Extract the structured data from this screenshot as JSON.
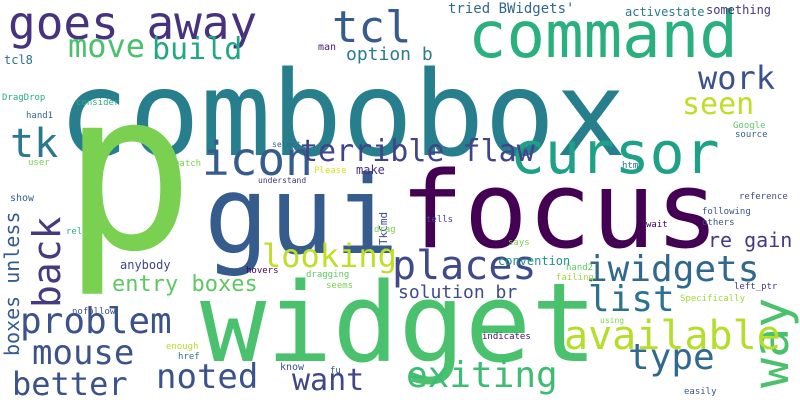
{
  "palette": {
    "dark_purple": "#440154",
    "indigo": "#46327e",
    "blue": "#365c8d",
    "teal_blue": "#277f8e",
    "teal": "#1fa187",
    "green": "#4ac16d",
    "light_green": "#a0da39",
    "yellow": "#d8e219"
  },
  "words": [
    {
      "text": "combobox",
      "color": "#277f8e"
    },
    {
      "text": "p",
      "color": "#7ad151"
    },
    {
      "text": "gui",
      "color": "#365c8d"
    },
    {
      "text": "focus",
      "color": "#440154"
    },
    {
      "text": "widget",
      "color": "#4ac16d"
    },
    {
      "text": "command",
      "color": "#2ab07f"
    },
    {
      "text": "cursor",
      "color": "#1fa187"
    },
    {
      "text": "goes away",
      "color": "#46327e"
    },
    {
      "text": "tcl",
      "color": "#365c8d"
    },
    {
      "text": "icon",
      "color": "#365c8d"
    },
    {
      "text": "way",
      "color": "#4ac16d"
    },
    {
      "text": "move",
      "color": "#4ac16d"
    },
    {
      "text": "build",
      "color": "#22a884"
    },
    {
      "text": "tk",
      "color": "#2a788e"
    },
    {
      "text": "back",
      "color": "#443983"
    },
    {
      "text": "problem",
      "color": "#3b528b"
    },
    {
      "text": "places",
      "color": "#3e4a89"
    },
    {
      "text": "iwidgets",
      "color": "#31688e"
    },
    {
      "text": "looking",
      "color": "#bddf26"
    },
    {
      "text": "terrible flaw",
      "color": "#414487"
    },
    {
      "text": "available",
      "color": "#b5de2b"
    },
    {
      "text": "list",
      "color": "#2c728e"
    },
    {
      "text": "seen",
      "color": "#bddf26"
    },
    {
      "text": "work",
      "color": "#3b528b"
    },
    {
      "text": "mouse",
      "color": "#3b528b"
    },
    {
      "text": "noted",
      "color": "#3b528b"
    },
    {
      "text": "exiting",
      "color": "#3dbc74"
    },
    {
      "text": "type",
      "color": "#31688e"
    },
    {
      "text": "better",
      "color": "#3b528b"
    },
    {
      "text": "want",
      "color": "#404688"
    },
    {
      "text": "entry boxes",
      "color": "#5ec962"
    },
    {
      "text": "boxes unless",
      "color": "#365c8d"
    },
    {
      "text": "re gain",
      "color": "#443983"
    },
    {
      "text": "solution br",
      "color": "#3e4a89"
    },
    {
      "text": "option b",
      "color": "#287c8e"
    },
    {
      "text": "tried BWidgets'",
      "color": "#31688e"
    },
    {
      "text": "activestate",
      "color": "#2a788e"
    },
    {
      "text": "something",
      "color": "#443983"
    },
    {
      "text": "tcl8",
      "color": "#2d708e"
    },
    {
      "text": "man",
      "color": "#482173"
    },
    {
      "text": "DragDrop",
      "color": "#27ad81"
    },
    {
      "text": "consider",
      "color": "#2ab07f"
    },
    {
      "text": "hand1",
      "color": "#31688e"
    },
    {
      "text": "user",
      "color": "#7ad151"
    },
    {
      "text": "watch",
      "color": "#7ad151"
    },
    {
      "text": "select",
      "color": "#31688e"
    },
    {
      "text": "understand",
      "color": "#443983"
    },
    {
      "text": "Please",
      "color": "#d8e219"
    },
    {
      "text": "make",
      "color": "#46327e"
    },
    {
      "text": "htm",
      "color": "#2c728e"
    },
    {
      "text": "Google",
      "color": "#5ec962"
    },
    {
      "text": "source",
      "color": "#365c8d"
    },
    {
      "text": "others",
      "color": "#3b528b"
    },
    {
      "text": "reference",
      "color": "#3e4a89"
    },
    {
      "text": "following",
      "color": "#3b528b"
    },
    {
      "text": "wait",
      "color": "#440154"
    },
    {
      "text": "tells",
      "color": "#414487"
    },
    {
      "text": "TkCmd",
      "color": "#3b528b"
    },
    {
      "text": "drag",
      "color": "#7ad151"
    },
    {
      "text": "show",
      "color": "#365c8d"
    },
    {
      "text": "rel",
      "color": "#2ab07f"
    },
    {
      "text": "anybody",
      "color": "#414487"
    },
    {
      "text": "convention",
      "color": "#21918c"
    },
    {
      "text": "hand2",
      "color": "#5ec962"
    },
    {
      "text": "says",
      "color": "#7ad151"
    },
    {
      "text": "failing",
      "color": "#a0da39"
    },
    {
      "text": "hovers",
      "color": "#440154"
    },
    {
      "text": "dragging",
      "color": "#5ec962"
    },
    {
      "text": "seems",
      "color": "#7ad151"
    },
    {
      "text": "left_ptr",
      "color": "#443983"
    },
    {
      "text": "Specifically",
      "color": "#a0da39"
    },
    {
      "text": "using",
      "color": "#7ad151"
    },
    {
      "text": "nofollow",
      "color": "#3b528b"
    },
    {
      "text": "enough",
      "color": "#b5de2b"
    },
    {
      "text": "href",
      "color": "#2c728e"
    },
    {
      "text": "indicates",
      "color": "#471063"
    },
    {
      "text": "know",
      "color": "#3b528b"
    },
    {
      "text": "fu",
      "color": "#3b528b"
    },
    {
      "text": "easily",
      "color": "#3b528b"
    }
  ]
}
